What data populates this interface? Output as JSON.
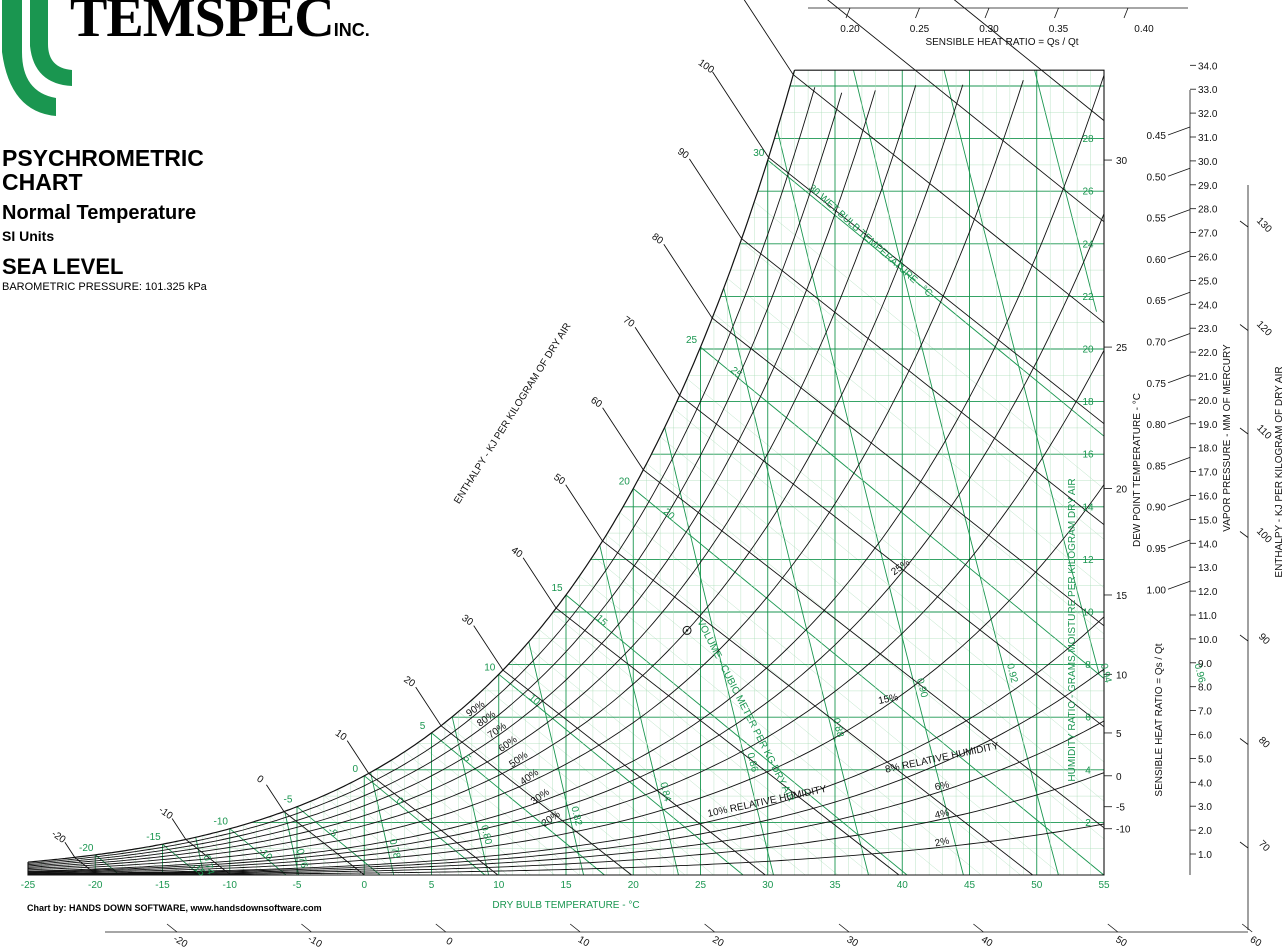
{
  "header": {
    "logo_text": "TEMSPEC",
    "logo_suffix": "INC.",
    "title": "PSYCHROMETRIC CHART",
    "subtitle": "Normal Temperature",
    "units": "SI Units",
    "altitude": "SEA LEVEL",
    "pressure": "BAROMETRIC PRESSURE: 101.325 kPa"
  },
  "footer": {
    "credit": "Chart by: HANDS DOWN SOFTWARE, www.handsdownsoftware.com"
  },
  "colors": {
    "green": "#1a9650",
    "light_green": "#a9dcb8",
    "black": "#111111"
  },
  "chart_data": {
    "type": "psychrometric",
    "xlabel": "DRY BULB TEMPERATURE - °C",
    "ylabel": "HUMIDITY RATIO - GRAMS MOISTURE PER KILOGRAM DRY AIR",
    "xlim": [
      -25,
      55
    ],
    "ylim": [
      0,
      30
    ],
    "dry_bulb_ticks": [
      "-25",
      "-20",
      "-15",
      "-10",
      "-5",
      "0",
      "5",
      "10",
      "15",
      "20",
      "25",
      "30",
      "35",
      "40",
      "45",
      "50",
      "55"
    ],
    "humidity_ratio_ticks": [
      "2",
      "4",
      "6",
      "8",
      "10",
      "12",
      "14",
      "16",
      "18",
      "20",
      "22",
      "24",
      "26",
      "28"
    ],
    "relative_humidity": {
      "curves_percent": [
        2,
        4,
        6,
        8,
        10,
        15,
        20,
        25,
        30,
        40,
        50,
        60,
        70,
        80,
        90
      ],
      "labels": [
        "2%",
        "4%",
        "6%",
        "8% RELATIVE HUMIDITY",
        "10% RELATIVE HUMIDITY",
        "15%",
        "20%",
        "25%",
        "30%",
        "40%",
        "50%",
        "60%",
        "70%",
        "80%",
        "90%"
      ]
    },
    "wet_bulb": {
      "label": "30 WET BULB TEMPERATURE - °C",
      "values": [
        -20,
        -15,
        -10,
        -5,
        0,
        5,
        10,
        15,
        20,
        25,
        30
      ],
      "scale_labels": [
        "-20",
        "-15",
        "-10",
        "-5",
        "0",
        "5",
        "10",
        "15",
        "20",
        "25",
        "30"
      ],
      "inline_labels": [
        "-15",
        "-10",
        "-5",
        "0",
        "5",
        "10",
        "15",
        "20",
        "25"
      ]
    },
    "volume": {
      "label": "VOLUME - CUBIC METER PER KG DRY AIR",
      "values": [
        0.74,
        0.76,
        0.78,
        0.8,
        0.82,
        0.84,
        0.86,
        0.88,
        0.9,
        0.92,
        0.94,
        0.96
      ],
      "labels": [
        "0.74",
        "0.76",
        "0.78",
        "0.80",
        "0.82",
        "0.84",
        "0.86",
        "0.88",
        "0.90",
        "0.92",
        "0.94",
        "0.96"
      ]
    },
    "enthalpy_inner": {
      "label": "ENTHALPY - KJ PER KILOGRAM OF DRY AIR",
      "values": [
        -20,
        -10,
        0,
        10,
        20,
        30,
        40,
        50,
        60,
        70,
        80,
        90,
        100,
        110,
        120,
        130
      ],
      "labels": [
        "-20",
        "-10",
        "0",
        "10",
        "20",
        "30",
        "40",
        "50",
        "60",
        "70",
        "80",
        "90",
        "100",
        "110",
        "120",
        "130"
      ]
    },
    "enthalpy_bottom": {
      "labels": [
        "-20",
        "-10",
        "0",
        "10",
        "20",
        "30",
        "40",
        "50",
        "60"
      ]
    },
    "enthalpy_right": {
      "label": "ENTHALPY - KJ PER KILOGRAM OF DRY AIR",
      "labels": [
        "70",
        "80",
        "90",
        "100",
        "110",
        "120",
        "130"
      ]
    },
    "dew_point": {
      "label": "DEW POINT TEMPERATURE - °C",
      "labels": [
        "-10",
        "-5",
        "0",
        "5",
        "10",
        "15",
        "20",
        "25",
        "30"
      ]
    },
    "shr_top": {
      "label": "SENSIBLE HEAT RATIO = Qs / Qt",
      "labels": [
        "0.20",
        "0.25",
        "0.30",
        "0.35",
        "0.40"
      ]
    },
    "shr_right": {
      "label": "SENSIBLE HEAT RATIO = Qs / Qt",
      "labels": [
        "0.45",
        "0.50",
        "0.55",
        "0.60",
        "0.65",
        "0.70",
        "0.75",
        "0.80",
        "0.85",
        "0.90",
        "0.95",
        "1.00"
      ]
    },
    "vapor_pressure": {
      "label": "VAPOR PRESSURE - MM OF MERCURY",
      "labels": [
        "1.0",
        "2.0",
        "3.0",
        "4.0",
        "5.0",
        "6.0",
        "7.0",
        "8.0",
        "9.0",
        "10.0",
        "11.0",
        "12.0",
        "13.0",
        "14.0",
        "15.0",
        "16.0",
        "17.0",
        "18.0",
        "19.0",
        "20.0",
        "21.0",
        "22.0",
        "23.0",
        "24.0",
        "25.0",
        "26.0",
        "27.0",
        "28.0",
        "29.0",
        "30.0",
        "31.0",
        "32.0",
        "33.0",
        "34.0"
      ]
    },
    "reference_point": {
      "dry_bulb": 24,
      "humidity_ratio": 9.3
    }
  }
}
